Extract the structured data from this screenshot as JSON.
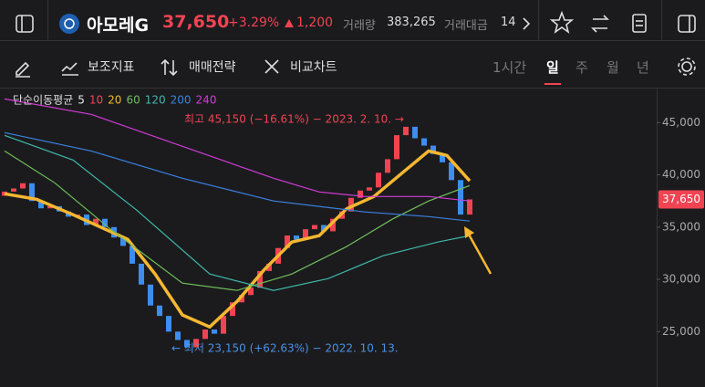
{
  "header": {
    "name": "아모레G",
    "price": "37,650",
    "change_pct": "+3.29%",
    "change": "1,200",
    "volume_label": "거래량",
    "volume": "383,265",
    "amount_label": "거래대금",
    "amount": "14"
  },
  "toolbar": {
    "items": [
      "보조지표",
      "매매전략",
      "비교차트"
    ],
    "periods": [
      "1시간",
      "일",
      "주",
      "월",
      "년"
    ],
    "selected_period": 1
  },
  "chart_data": {
    "type": "candlestick",
    "legend_title": "단순이동평균",
    "xlim": [
      -0.5,
      71.5
    ],
    "ylim": [
      19700,
      48000
    ],
    "yticks": [
      {
        "value": 25000,
        "label": "25,000"
      },
      {
        "value": 30000,
        "label": "30,000"
      },
      {
        "value": 35000,
        "label": "35,000"
      },
      {
        "value": 40000,
        "label": "40,000"
      },
      {
        "value": 45000,
        "label": "45,000"
      }
    ],
    "current_price": {
      "value": 37650,
      "label": "37,650"
    },
    "up_color": "#f04452",
    "down_color": "#3d8ef0",
    "open": [
      38000,
      38400,
      38700,
      39200,
      37500,
      36800,
      37000,
      36500,
      36000,
      36200,
      35200,
      35800,
      35000,
      34000,
      33200,
      31500,
      29500,
      27500,
      26500,
      25000,
      24200,
      23500,
      24300,
      25200,
      24800,
      26500,
      27800,
      28500,
      29200,
      30800,
      31500,
      33000,
      34200,
      33800,
      34800,
      35200,
      34600,
      35800,
      36500,
      37800,
      38500,
      38800,
      40200,
      41500,
      43800,
      44600,
      43500,
      42800,
      42000,
      41200,
      39500,
      36200
    ],
    "close": [
      38400,
      38700,
      39200,
      37500,
      36800,
      37000,
      36500,
      36000,
      36200,
      35200,
      35800,
      35000,
      34000,
      33200,
      31500,
      29500,
      27500,
      26500,
      25000,
      24200,
      23500,
      24300,
      25200,
      24800,
      26500,
      27800,
      28500,
      29200,
      30800,
      31500,
      33000,
      34200,
      33800,
      34800,
      35200,
      34600,
      35800,
      36500,
      37800,
      38500,
      38800,
      40200,
      41500,
      43800,
      44600,
      43500,
      42800,
      42000,
      41200,
      39500,
      36200,
      37650
    ],
    "series": [
      {
        "name": "5",
        "color": "#e8e8e8"
      },
      {
        "name": "10",
        "color": "#f04452"
      },
      {
        "name": "20",
        "color": "#f5b731",
        "x": [
          0,
          3.5,
          7.5,
          13.5,
          16.5,
          19.5,
          22.5,
          25.5,
          28.5,
          31.5,
          34.5,
          37.5,
          40.5,
          43.5,
          46.5,
          48.5,
          51
        ],
        "values": [
          38190,
          37670,
          36190,
          33830,
          30510,
          26590,
          25450,
          27900,
          30950,
          33570,
          34180,
          36750,
          37930,
          40110,
          42290,
          41860,
          39420
        ]
      },
      {
        "name": "60",
        "color": "#6fbf5a",
        "x": [
          0,
          5.5,
          11.5,
          19.5,
          25.5,
          31.5,
          37.5,
          42.5,
          46.5,
          51
        ],
        "values": [
          42290,
          39240,
          34880,
          29640,
          28940,
          30510,
          33130,
          35750,
          37500,
          38980
        ]
      },
      {
        "name": "120",
        "color": "#3fb8a8",
        "x": [
          0,
          7.5,
          14.5,
          22.5,
          29.5,
          35.5,
          41.5,
          47.5,
          51
        ],
        "values": [
          43780,
          41420,
          36620,
          30510,
          28940,
          30080,
          32260,
          33570,
          34180
        ]
      },
      {
        "name": "200",
        "color": "#3b82e0",
        "x": [
          0,
          9.5,
          19.5,
          29.5,
          39.5,
          46.5,
          51
        ],
        "values": [
          44040,
          42290,
          39680,
          37500,
          36450,
          36010,
          35580
        ]
      },
      {
        "name": "240",
        "color": "#d23ad6",
        "x": [
          0,
          9.5,
          19.5,
          29.5,
          34.5,
          39.5,
          46.5,
          51
        ],
        "values": [
          47270,
          45790,
          42730,
          39680,
          38370,
          37930,
          37930,
          37500
        ]
      }
    ],
    "annotations": [
      {
        "text": "최고 45,150 (−16.61%) − 2023. 2. 10. →",
        "color": "#f04452"
      },
      {
        "text": "← 최저 23,150 (+62.63%) − 2022. 10. 13.",
        "color": "#4a90e2"
      }
    ]
  }
}
